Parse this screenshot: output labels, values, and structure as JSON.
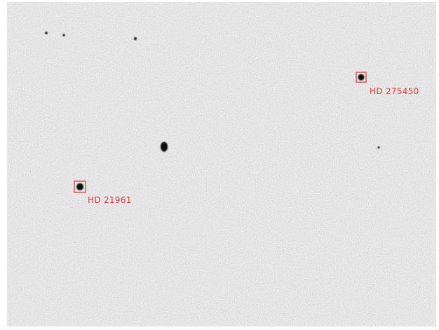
{
  "annotations": [
    {
      "label": "HD 275450"
    },
    {
      "label": "HD 21961"
    }
  ]
}
